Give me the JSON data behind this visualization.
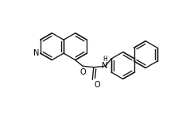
{
  "background_color": "#ffffff",
  "bond_color": "#1a1a1a",
  "atom_label_color": "#000000",
  "bond_width": 1.0,
  "figsize": [
    2.29,
    1.55
  ],
  "dpi": 100,
  "xlim": [
    0,
    229
  ],
  "ylim": [
    0,
    155
  ]
}
